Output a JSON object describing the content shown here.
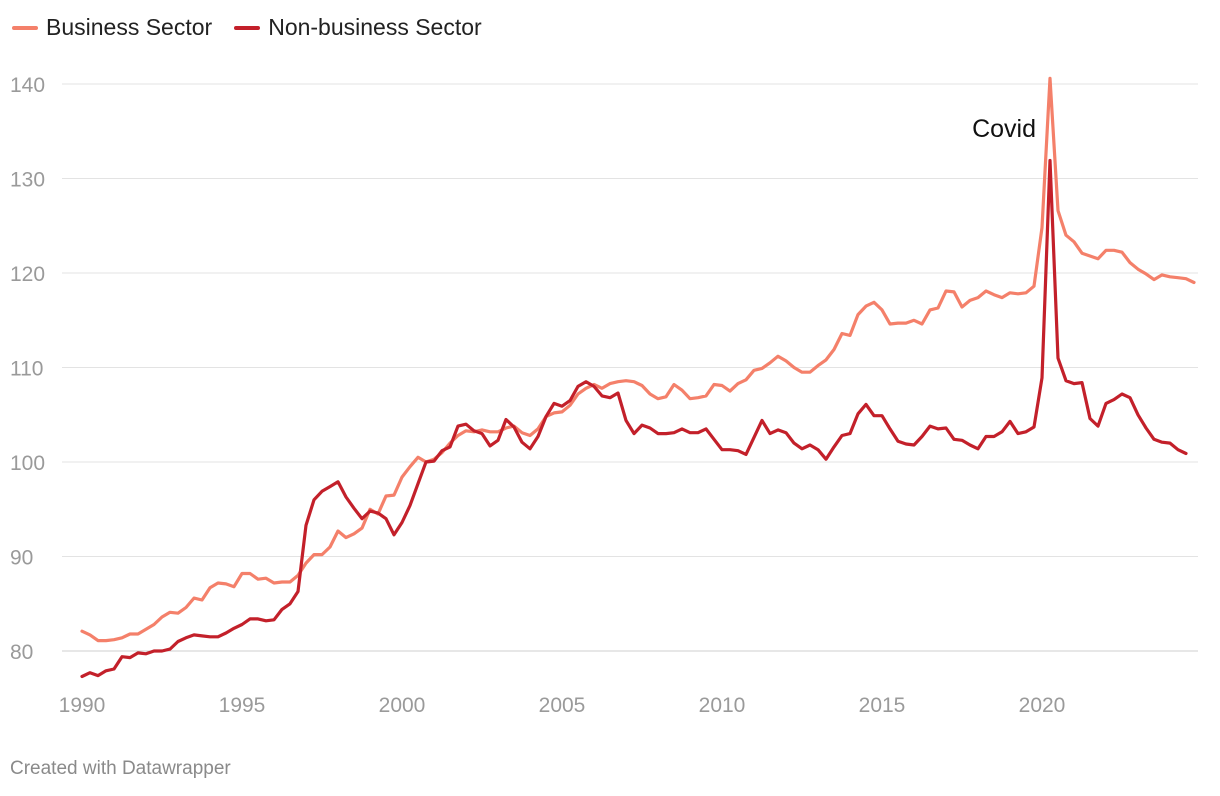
{
  "footer": {
    "credit": "Created with Datawrapper"
  },
  "chart_data": {
    "type": "line",
    "title": "",
    "xlabel": "",
    "ylabel": "",
    "xlim": [
      1990,
      2024.75
    ],
    "ylim": [
      77,
      142
    ],
    "x_ticks": [
      1990,
      1995,
      2000,
      2005,
      2010,
      2015,
      2020
    ],
    "y_ticks": [
      80,
      90,
      100,
      110,
      120,
      130,
      140
    ],
    "grid": true,
    "legend_position": "top-left",
    "annotations": [
      {
        "text": "Covid",
        "x": 2019.2,
        "y": 134
      }
    ],
    "series": [
      {
        "name": "Business Sector",
        "color": "#f4806a",
        "points": [
          [
            1990.0,
            82.1
          ],
          [
            1990.25,
            81.7
          ],
          [
            1990.5,
            81.1
          ],
          [
            1990.75,
            81.1
          ],
          [
            1991.0,
            81.2
          ],
          [
            1991.25,
            81.4
          ],
          [
            1991.5,
            81.8
          ],
          [
            1991.75,
            81.8
          ],
          [
            1992.0,
            82.3
          ],
          [
            1992.25,
            82.8
          ],
          [
            1992.5,
            83.6
          ],
          [
            1992.75,
            84.1
          ],
          [
            1993.0,
            84.0
          ],
          [
            1993.25,
            84.6
          ],
          [
            1993.5,
            85.6
          ],
          [
            1993.75,
            85.4
          ],
          [
            1994.0,
            86.7
          ],
          [
            1994.25,
            87.2
          ],
          [
            1994.5,
            87.1
          ],
          [
            1994.75,
            86.8
          ],
          [
            1995.0,
            88.2
          ],
          [
            1995.25,
            88.2
          ],
          [
            1995.5,
            87.6
          ],
          [
            1995.75,
            87.7
          ],
          [
            1996.0,
            87.2
          ],
          [
            1996.25,
            87.3
          ],
          [
            1996.5,
            87.3
          ],
          [
            1996.75,
            88.0
          ],
          [
            1997.0,
            89.3
          ],
          [
            1997.25,
            90.2
          ],
          [
            1997.5,
            90.2
          ],
          [
            1997.75,
            91.0
          ],
          [
            1998.0,
            92.7
          ],
          [
            1998.25,
            92.0
          ],
          [
            1998.5,
            92.4
          ],
          [
            1998.75,
            93.0
          ],
          [
            1999.0,
            95.0
          ],
          [
            1999.25,
            94.5
          ],
          [
            1999.5,
            96.4
          ],
          [
            1999.75,
            96.5
          ],
          [
            2000.0,
            98.4
          ],
          [
            2000.25,
            99.5
          ],
          [
            2000.5,
            100.5
          ],
          [
            2000.75,
            100.0
          ],
          [
            2001.0,
            100.3
          ],
          [
            2001.25,
            101.0
          ],
          [
            2001.5,
            102.0
          ],
          [
            2001.75,
            102.8
          ],
          [
            2002.0,
            103.3
          ],
          [
            2002.25,
            103.2
          ],
          [
            2002.5,
            103.4
          ],
          [
            2002.75,
            103.2
          ],
          [
            2003.0,
            103.2
          ],
          [
            2003.25,
            103.6
          ],
          [
            2003.5,
            103.8
          ],
          [
            2003.75,
            103.1
          ],
          [
            2004.0,
            102.8
          ],
          [
            2004.25,
            103.5
          ],
          [
            2004.5,
            104.8
          ],
          [
            2004.75,
            105.2
          ],
          [
            2005.0,
            105.3
          ],
          [
            2005.25,
            106.0
          ],
          [
            2005.5,
            107.2
          ],
          [
            2005.75,
            107.8
          ],
          [
            2006.0,
            108.2
          ],
          [
            2006.25,
            107.8
          ],
          [
            2006.5,
            108.3
          ],
          [
            2006.75,
            108.5
          ],
          [
            2007.0,
            108.6
          ],
          [
            2007.25,
            108.5
          ],
          [
            2007.5,
            108.1
          ],
          [
            2007.75,
            107.2
          ],
          [
            2008.0,
            106.7
          ],
          [
            2008.25,
            106.9
          ],
          [
            2008.5,
            108.2
          ],
          [
            2008.75,
            107.6
          ],
          [
            2009.0,
            106.7
          ],
          [
            2009.25,
            106.8
          ],
          [
            2009.5,
            107.0
          ],
          [
            2009.75,
            108.2
          ],
          [
            2010.0,
            108.1
          ],
          [
            2010.25,
            107.5
          ],
          [
            2010.5,
            108.3
          ],
          [
            2010.75,
            108.7
          ],
          [
            2011.0,
            109.7
          ],
          [
            2011.25,
            109.9
          ],
          [
            2011.5,
            110.5
          ],
          [
            2011.75,
            111.2
          ],
          [
            2012.0,
            110.7
          ],
          [
            2012.25,
            110.0
          ],
          [
            2012.5,
            109.5
          ],
          [
            2012.75,
            109.5
          ],
          [
            2013.0,
            110.2
          ],
          [
            2013.25,
            110.8
          ],
          [
            2013.5,
            111.9
          ],
          [
            2013.75,
            113.6
          ],
          [
            2014.0,
            113.4
          ],
          [
            2014.25,
            115.6
          ],
          [
            2014.5,
            116.5
          ],
          [
            2014.75,
            116.9
          ],
          [
            2015.0,
            116.1
          ],
          [
            2015.25,
            114.6
          ],
          [
            2015.5,
            114.7
          ],
          [
            2015.75,
            114.7
          ],
          [
            2016.0,
            115.0
          ],
          [
            2016.25,
            114.6
          ],
          [
            2016.5,
            116.1
          ],
          [
            2016.75,
            116.3
          ],
          [
            2017.0,
            118.1
          ],
          [
            2017.25,
            118.0
          ],
          [
            2017.5,
            116.4
          ],
          [
            2017.75,
            117.1
          ],
          [
            2018.0,
            117.4
          ],
          [
            2018.25,
            118.1
          ],
          [
            2018.5,
            117.7
          ],
          [
            2018.75,
            117.4
          ],
          [
            2019.0,
            117.9
          ],
          [
            2019.25,
            117.8
          ],
          [
            2019.5,
            117.9
          ],
          [
            2019.75,
            118.6
          ],
          [
            2020.0,
            124.8
          ],
          [
            2020.25,
            140.6
          ],
          [
            2020.5,
            126.6
          ],
          [
            2020.75,
            124.0
          ],
          [
            2021.0,
            123.3
          ],
          [
            2021.25,
            122.1
          ],
          [
            2021.5,
            121.8
          ],
          [
            2021.75,
            121.5
          ],
          [
            2022.0,
            122.4
          ],
          [
            2022.25,
            122.4
          ],
          [
            2022.5,
            122.2
          ],
          [
            2022.75,
            121.1
          ],
          [
            2023.0,
            120.4
          ],
          [
            2023.25,
            119.9
          ],
          [
            2023.5,
            119.3
          ],
          [
            2023.75,
            119.8
          ],
          [
            2024.0,
            119.6
          ],
          [
            2024.25,
            119.5
          ],
          [
            2024.5,
            119.4
          ],
          [
            2024.75,
            119.0
          ]
        ]
      },
      {
        "name": "Non-business Sector",
        "color": "#c3202a",
        "points": [
          [
            1990.0,
            77.3
          ],
          [
            1990.25,
            77.7
          ],
          [
            1990.5,
            77.4
          ],
          [
            1990.75,
            77.9
          ],
          [
            1991.0,
            78.1
          ],
          [
            1991.25,
            79.4
          ],
          [
            1991.5,
            79.3
          ],
          [
            1991.75,
            79.8
          ],
          [
            1992.0,
            79.7
          ],
          [
            1992.25,
            80.0
          ],
          [
            1992.5,
            80.0
          ],
          [
            1992.75,
            80.2
          ],
          [
            1993.0,
            81.0
          ],
          [
            1993.25,
            81.4
          ],
          [
            1993.5,
            81.7
          ],
          [
            1993.75,
            81.6
          ],
          [
            1994.0,
            81.5
          ],
          [
            1994.25,
            81.5
          ],
          [
            1994.5,
            81.9
          ],
          [
            1994.75,
            82.4
          ],
          [
            1995.0,
            82.8
          ],
          [
            1995.25,
            83.4
          ],
          [
            1995.5,
            83.4
          ],
          [
            1995.75,
            83.2
          ],
          [
            1996.0,
            83.3
          ],
          [
            1996.25,
            84.4
          ],
          [
            1996.5,
            85.0
          ],
          [
            1996.75,
            86.3
          ],
          [
            1997.0,
            93.3
          ],
          [
            1997.25,
            96.0
          ],
          [
            1997.5,
            96.9
          ],
          [
            1997.75,
            97.4
          ],
          [
            1998.0,
            97.9
          ],
          [
            1998.25,
            96.3
          ],
          [
            1998.5,
            95.1
          ],
          [
            1998.75,
            94.0
          ],
          [
            1999.0,
            94.8
          ],
          [
            1999.25,
            94.6
          ],
          [
            1999.5,
            94.0
          ],
          [
            1999.75,
            92.3
          ],
          [
            2000.0,
            93.6
          ],
          [
            2000.25,
            95.4
          ],
          [
            2000.5,
            97.7
          ],
          [
            2000.75,
            100.0
          ],
          [
            2001.0,
            100.1
          ],
          [
            2001.25,
            101.2
          ],
          [
            2001.5,
            101.6
          ],
          [
            2001.75,
            103.8
          ],
          [
            2002.0,
            104.0
          ],
          [
            2002.25,
            103.3
          ],
          [
            2002.5,
            103.0
          ],
          [
            2002.75,
            101.7
          ],
          [
            2003.0,
            102.3
          ],
          [
            2003.25,
            104.5
          ],
          [
            2003.5,
            103.7
          ],
          [
            2003.75,
            102.1
          ],
          [
            2004.0,
            101.4
          ],
          [
            2004.25,
            102.7
          ],
          [
            2004.5,
            104.8
          ],
          [
            2004.75,
            106.2
          ],
          [
            2005.0,
            105.9
          ],
          [
            2005.25,
            106.5
          ],
          [
            2005.5,
            108.0
          ],
          [
            2005.75,
            108.5
          ],
          [
            2006.0,
            108.0
          ],
          [
            2006.25,
            107.0
          ],
          [
            2006.5,
            106.8
          ],
          [
            2006.75,
            107.3
          ],
          [
            2007.0,
            104.4
          ],
          [
            2007.25,
            103.0
          ],
          [
            2007.5,
            103.9
          ],
          [
            2007.75,
            103.6
          ],
          [
            2008.0,
            103.0
          ],
          [
            2008.25,
            103.0
          ],
          [
            2008.5,
            103.1
          ],
          [
            2008.75,
            103.5
          ],
          [
            2009.0,
            103.1
          ],
          [
            2009.25,
            103.1
          ],
          [
            2009.5,
            103.5
          ],
          [
            2009.75,
            102.4
          ],
          [
            2010.0,
            101.3
          ],
          [
            2010.25,
            101.3
          ],
          [
            2010.5,
            101.2
          ],
          [
            2010.75,
            100.8
          ],
          [
            2011.0,
            102.6
          ],
          [
            2011.25,
            104.4
          ],
          [
            2011.5,
            103.0
          ],
          [
            2011.75,
            103.4
          ],
          [
            2012.0,
            103.1
          ],
          [
            2012.25,
            102.0
          ],
          [
            2012.5,
            101.4
          ],
          [
            2012.75,
            101.8
          ],
          [
            2013.0,
            101.3
          ],
          [
            2013.25,
            100.3
          ],
          [
            2013.5,
            101.6
          ],
          [
            2013.75,
            102.8
          ],
          [
            2014.0,
            103.0
          ],
          [
            2014.25,
            105.1
          ],
          [
            2014.5,
            106.1
          ],
          [
            2014.75,
            104.9
          ],
          [
            2015.0,
            104.9
          ],
          [
            2015.25,
            103.5
          ],
          [
            2015.5,
            102.2
          ],
          [
            2015.75,
            101.9
          ],
          [
            2016.0,
            101.8
          ],
          [
            2016.25,
            102.7
          ],
          [
            2016.5,
            103.8
          ],
          [
            2016.75,
            103.5
          ],
          [
            2017.0,
            103.6
          ],
          [
            2017.25,
            102.4
          ],
          [
            2017.5,
            102.3
          ],
          [
            2017.75,
            101.8
          ],
          [
            2018.0,
            101.4
          ],
          [
            2018.25,
            102.7
          ],
          [
            2018.5,
            102.7
          ],
          [
            2018.75,
            103.2
          ],
          [
            2019.0,
            104.3
          ],
          [
            2019.25,
            103.0
          ],
          [
            2019.5,
            103.2
          ],
          [
            2019.75,
            103.7
          ],
          [
            2020.0,
            108.9
          ],
          [
            2020.25,
            131.9
          ],
          [
            2020.5,
            111.0
          ],
          [
            2020.75,
            108.6
          ],
          [
            2021.0,
            108.3
          ],
          [
            2021.25,
            108.4
          ],
          [
            2021.5,
            104.6
          ],
          [
            2021.75,
            103.8
          ],
          [
            2022.0,
            106.2
          ],
          [
            2022.25,
            106.6
          ],
          [
            2022.5,
            107.2
          ],
          [
            2022.75,
            106.8
          ],
          [
            2023.0,
            105.0
          ],
          [
            2023.25,
            103.6
          ],
          [
            2023.5,
            102.4
          ],
          [
            2023.75,
            102.1
          ],
          [
            2024.0,
            102.0
          ],
          [
            2024.25,
            101.3
          ],
          [
            2024.5,
            100.9
          ]
        ]
      }
    ]
  }
}
